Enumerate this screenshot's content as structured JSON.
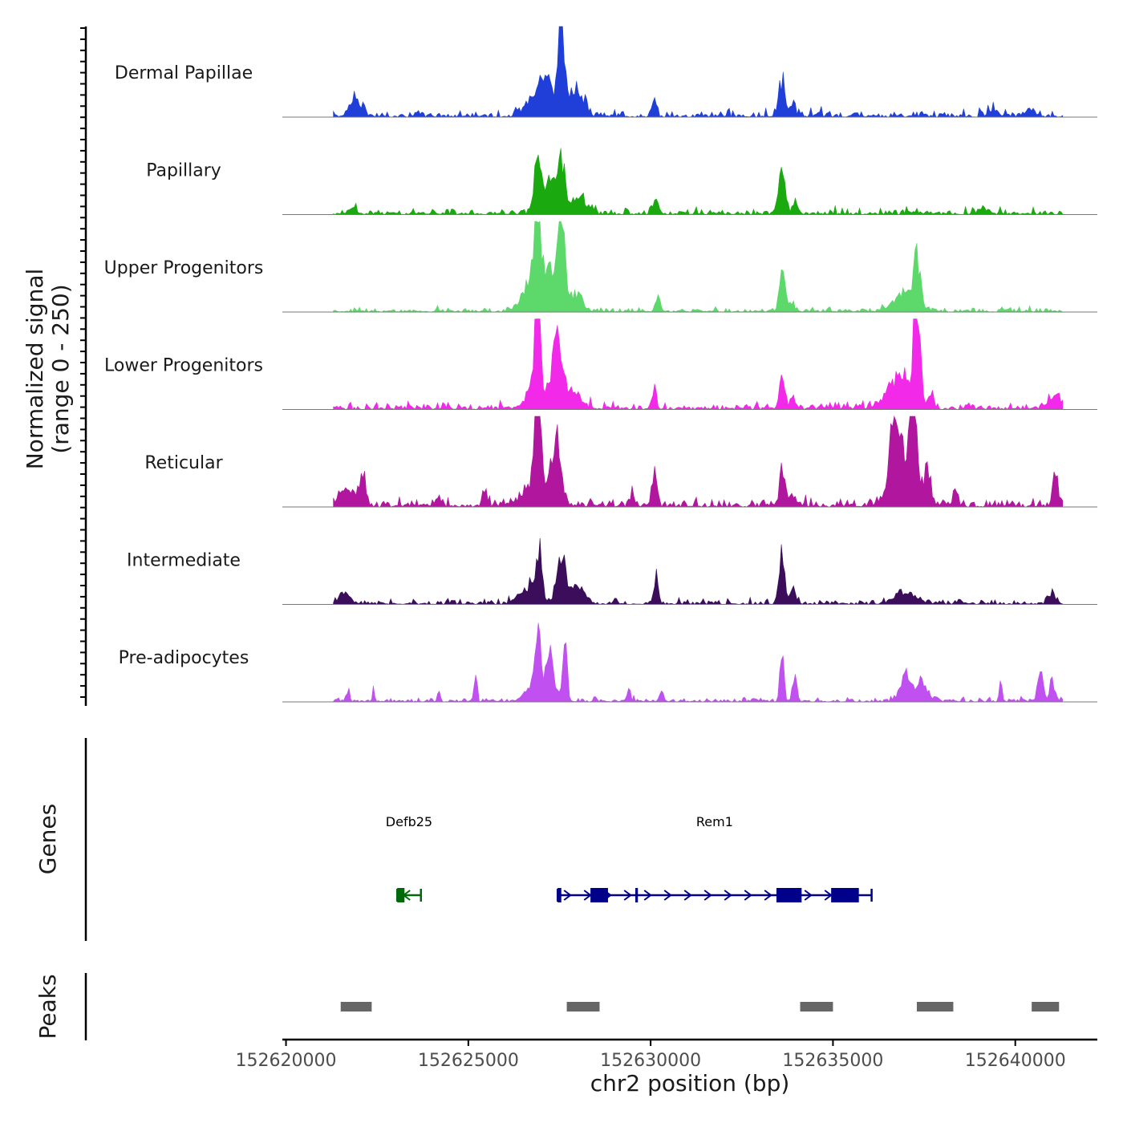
{
  "figure": {
    "signal_axis_title_line1": "Normalized signal",
    "signal_axis_title_line2": "(range 0 - 250)",
    "genes_axis_title": "Genes",
    "peaks_axis_title": "Peaks",
    "x_axis_title": "chr2 position (bp)"
  },
  "chart_data": {
    "type": "area",
    "title": "",
    "xlabel": "chr2 position (bp)",
    "ylabel": "Normalized signal (range 0 - 250)",
    "chromosome": "chr2",
    "xlim": [
      152619900,
      152642250
    ],
    "ylim": [
      0,
      250
    ],
    "x_ticks": [
      152620000,
      152625000,
      152630000,
      152635000,
      152640000
    ],
    "x_tick_labels": [
      "152620000",
      "152625000",
      "152630000",
      "152635000",
      "152640000"
    ],
    "x_data_start": 152621300,
    "x_data_end": 152641300,
    "tracks": [
      {
        "name": "Dermal Papillae",
        "color": "#1f3fd8",
        "baseline": 8,
        "peaks": [
          [
            152621900,
            150,
            25
          ],
          [
            152626800,
            200,
            33
          ],
          [
            152627150,
            160,
            50
          ],
          [
            152627550,
            90,
            120
          ],
          [
            152627900,
            130,
            40
          ],
          [
            152628150,
            100,
            18
          ],
          [
            152630100,
            60,
            18
          ],
          [
            152633600,
            90,
            48
          ],
          [
            152633900,
            60,
            15
          ],
          [
            152639400,
            120,
            10
          ],
          [
            152640400,
            120,
            12
          ]
        ]
      },
      {
        "name": "Papillary",
        "color": "#1aaa10",
        "baseline": 7,
        "peaks": [
          [
            152621850,
            80,
            10
          ],
          [
            152626900,
            100,
            70
          ],
          [
            152627250,
            120,
            50
          ],
          [
            152627550,
            90,
            75
          ],
          [
            152628000,
            200,
            25
          ],
          [
            152630150,
            70,
            20
          ],
          [
            152633600,
            75,
            75
          ],
          [
            152633950,
            60,
            15
          ],
          [
            152639100,
            100,
            10
          ]
        ]
      },
      {
        "name": "Upper Progenitors",
        "color": "#5cd96a",
        "baseline": 5,
        "peaks": [
          [
            152626900,
            80,
            115
          ],
          [
            152626800,
            260,
            45
          ],
          [
            152627400,
            250,
            55
          ],
          [
            152627550,
            70,
            115
          ],
          [
            152628000,
            150,
            20
          ],
          [
            152630200,
            60,
            22
          ],
          [
            152633600,
            70,
            60
          ],
          [
            152633800,
            120,
            12
          ],
          [
            152637000,
            300,
            25
          ],
          [
            152637300,
            80,
            65
          ]
        ]
      },
      {
        "name": "Lower Progenitors",
        "color": "#f229e8",
        "baseline": 8,
        "peaks": [
          [
            152626900,
            70,
            145
          ],
          [
            152626850,
            250,
            30
          ],
          [
            152627450,
            110,
            90
          ],
          [
            152627700,
            300,
            25
          ],
          [
            152630100,
            60,
            25
          ],
          [
            152633600,
            70,
            40
          ],
          [
            152633900,
            60,
            20
          ],
          [
            152636850,
            350,
            45
          ],
          [
            152637300,
            80,
            145
          ],
          [
            152637700,
            60,
            20
          ],
          [
            152641100,
            200,
            18
          ]
        ]
      },
      {
        "name": "Reticular",
        "color": "#b0179e",
        "baseline": 10,
        "peaks": [
          [
            152621700,
            200,
            25
          ],
          [
            152622100,
            90,
            35
          ],
          [
            152625450,
            60,
            25
          ],
          [
            152626900,
            70,
            150
          ],
          [
            152627450,
            100,
            85
          ],
          [
            152627000,
            350,
            40
          ],
          [
            152629500,
            50,
            25
          ],
          [
            152630100,
            60,
            45
          ],
          [
            152633600,
            70,
            50
          ],
          [
            152633900,
            120,
            15
          ],
          [
            152636700,
            150,
            95
          ],
          [
            152637200,
            80,
            220
          ],
          [
            152637000,
            300,
            50
          ],
          [
            152637600,
            70,
            40
          ],
          [
            152638350,
            60,
            22
          ],
          [
            152641100,
            70,
            50
          ]
        ]
      },
      {
        "name": "Intermediate",
        "color": "#3b0d5a",
        "baseline": 6,
        "peaks": [
          [
            152621600,
            150,
            15
          ],
          [
            152626950,
            70,
            65
          ],
          [
            152626700,
            250,
            25
          ],
          [
            152627550,
            120,
            60
          ],
          [
            152628000,
            180,
            25
          ],
          [
            152630150,
            60,
            40
          ],
          [
            152633600,
            70,
            65
          ],
          [
            152633900,
            70,
            25
          ],
          [
            152637000,
            300,
            15
          ],
          [
            152641000,
            80,
            12
          ]
        ]
      },
      {
        "name": "Pre-adipocytes",
        "color": "#c050ef",
        "baseline": 5,
        "peaks": [
          [
            152621700,
            30,
            15
          ],
          [
            152622400,
            25,
            15
          ],
          [
            152624200,
            30,
            18
          ],
          [
            152625200,
            40,
            30
          ],
          [
            152626900,
            60,
            85
          ],
          [
            152627250,
            60,
            75
          ],
          [
            152627650,
            60,
            70
          ],
          [
            152627000,
            300,
            35
          ],
          [
            152629400,
            40,
            20
          ],
          [
            152630300,
            40,
            18
          ],
          [
            152633600,
            50,
            70
          ],
          [
            152633950,
            60,
            35
          ],
          [
            152637000,
            150,
            35
          ],
          [
            152637450,
            150,
            25
          ],
          [
            152639600,
            40,
            20
          ],
          [
            152640700,
            70,
            50
          ],
          [
            152641000,
            60,
            30
          ]
        ]
      }
    ],
    "genes": [
      {
        "name": "Defb25",
        "color": "#006a0a",
        "strand": "-",
        "start": 152623050,
        "end": 152623700,
        "exons": [
          [
            152623050,
            152623250
          ]
        ]
      },
      {
        "name": "Rem1",
        "color": "#00008b",
        "strand": "+",
        "start": 152627450,
        "end": 152636060,
        "exons": [
          [
            152627450,
            152627550
          ],
          [
            152628350,
            152628830
          ],
          [
            152629580,
            152629650
          ],
          [
            152633450,
            152634140
          ],
          [
            152634950,
            152635710
          ]
        ]
      }
    ],
    "peaks": [
      [
        152621500,
        152622350
      ],
      [
        152627700,
        152628600
      ],
      [
        152634100,
        152635000
      ],
      [
        152637300,
        152638300
      ],
      [
        152640450,
        152641200
      ]
    ]
  }
}
